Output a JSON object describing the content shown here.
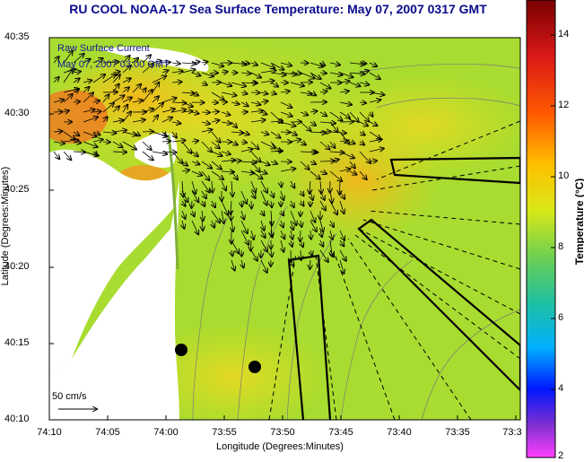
{
  "title": "RU COOL  NOAA-17  Sea Surface Temperature:  May 07, 2007 0317 GMT",
  "legend": {
    "line1": "Raw Surface Current",
    "line2": "May 07, 2007 03:00 GMT"
  },
  "scale_arrow_label": "50 cm/s",
  "x_axis": {
    "title": "Longitude (Degrees:Minutes)",
    "ticks": [
      "74:10",
      "74:05",
      "74:00",
      "73:55",
      "73:50",
      "73:45",
      "73:40",
      "73:35",
      "73:3"
    ]
  },
  "y_axis": {
    "title": "Latitude (Degrees:Minutes)",
    "ticks": [
      "40:35",
      "40:30",
      "40:25",
      "40:20",
      "40:15",
      "40:10"
    ]
  },
  "colorbar": {
    "title": "Temperature (°C)",
    "ticks": [
      "14",
      "12",
      "10",
      "8",
      "6",
      "4",
      "2"
    ],
    "range": [
      2,
      15
    ]
  },
  "colors": {
    "land": "#ffffff",
    "sea_base": "#a6dc33",
    "warm": "#f4c21e",
    "title": "#0a0a8c"
  }
}
